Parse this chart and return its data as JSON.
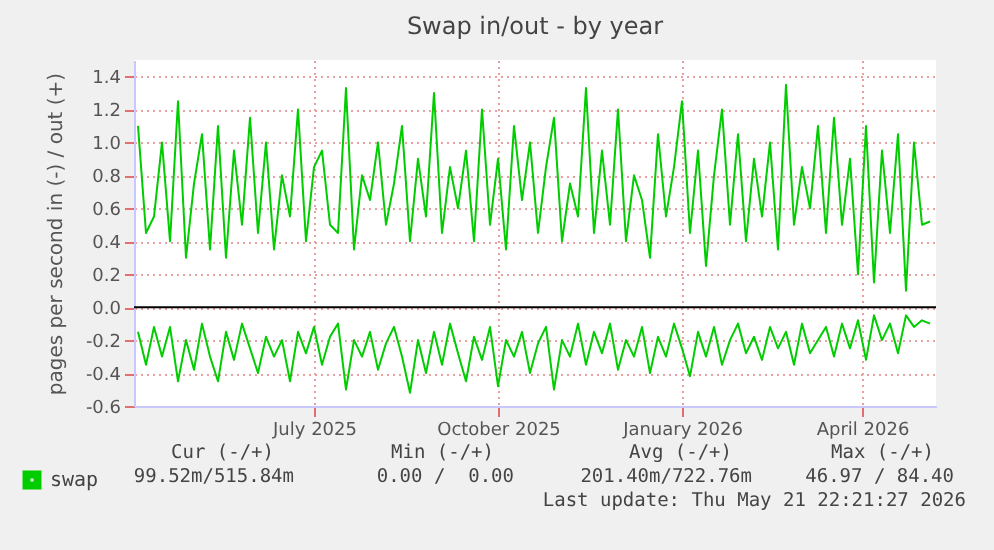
{
  "chart_data": {
    "type": "line",
    "title": "Swap in/out - by year",
    "ylabel": "pages per second in (-) / out (+)",
    "x": [
      "2025-04-19",
      "2025-04-23",
      "2025-04-27",
      "2025-05-01",
      "2025-05-05",
      "2025-05-09",
      "2025-05-13",
      "2025-05-17",
      "2025-05-21",
      "2025-05-25",
      "2025-05-29",
      "2025-06-02",
      "2025-06-06",
      "2025-06-10",
      "2025-06-14",
      "2025-06-18",
      "2025-06-22",
      "2025-06-26",
      "2025-06-30",
      "2025-07-04",
      "2025-07-08",
      "2025-07-12",
      "2025-07-16",
      "2025-07-20",
      "2025-07-24",
      "2025-07-28",
      "2025-08-01",
      "2025-08-05",
      "2025-08-09",
      "2025-08-13",
      "2025-08-17",
      "2025-08-21",
      "2025-08-25",
      "2025-08-29",
      "2025-09-02",
      "2025-09-06",
      "2025-09-10",
      "2025-09-14",
      "2025-09-18",
      "2025-09-22",
      "2025-09-26",
      "2025-09-30",
      "2025-10-04",
      "2025-10-08",
      "2025-10-12",
      "2025-10-16",
      "2025-10-20",
      "2025-10-24",
      "2025-10-28",
      "2025-11-01",
      "2025-11-05",
      "2025-11-09",
      "2025-11-13",
      "2025-11-17",
      "2025-11-21",
      "2025-11-25",
      "2025-11-29",
      "2025-12-03",
      "2025-12-07",
      "2025-12-11",
      "2025-12-15",
      "2025-12-19",
      "2025-12-23",
      "2025-12-27",
      "2025-12-31",
      "2026-01-04",
      "2026-01-08",
      "2026-01-12",
      "2026-01-16",
      "2026-01-20",
      "2026-01-24",
      "2026-01-28",
      "2026-02-01",
      "2026-02-05",
      "2026-02-09",
      "2026-02-13",
      "2026-02-17",
      "2026-02-21",
      "2026-02-25",
      "2026-03-01",
      "2026-03-05",
      "2026-03-09",
      "2026-03-13",
      "2026-03-17",
      "2026-03-21",
      "2026-03-25",
      "2026-03-29",
      "2026-04-02",
      "2026-04-06",
      "2026-04-10",
      "2026-04-14",
      "2026-04-18",
      "2026-04-22",
      "2026-04-26",
      "2026-04-30",
      "2026-05-04",
      "2026-05-08",
      "2026-05-12",
      "2026-05-16",
      "2026-05-20"
    ],
    "series": [
      {
        "name": "swap",
        "color": "#00cc00",
        "values": [
          1.1,
          0.45,
          0.55,
          1.0,
          0.4,
          1.25,
          0.3,
          0.75,
          1.05,
          0.35,
          1.1,
          0.3,
          0.95,
          0.5,
          1.15,
          0.45,
          1.0,
          0.35,
          0.8,
          0.55,
          1.2,
          0.4,
          0.85,
          0.95,
          0.5,
          0.45,
          1.33,
          0.35,
          0.8,
          0.65,
          1.0,
          0.5,
          0.75,
          1.1,
          0.4,
          0.9,
          0.55,
          1.3,
          0.45,
          0.85,
          0.6,
          0.95,
          0.4,
          1.2,
          0.5,
          0.9,
          0.35,
          1.1,
          0.65,
          1.0,
          0.45,
          0.85,
          1.15,
          0.4,
          0.75,
          0.55,
          1.33,
          0.45,
          0.95,
          0.5,
          1.2,
          0.4,
          0.8,
          0.65,
          0.3,
          1.05,
          0.55,
          0.85,
          1.25,
          0.45,
          0.95,
          0.25,
          0.8,
          1.2,
          0.5,
          1.05,
          0.4,
          0.9,
          0.55,
          1.0,
          0.35,
          1.35,
          0.5,
          0.85,
          0.6,
          1.1,
          0.45,
          1.15,
          0.5,
          0.9,
          0.2,
          1.1,
          0.15,
          0.95,
          0.45,
          1.05,
          0.1,
          1.0,
          0.5,
          0.52
        ]
      },
      {
        "color": "#00cc00",
        "values": [
          -0.15,
          -0.35,
          -0.12,
          -0.3,
          -0.12,
          -0.45,
          -0.2,
          -0.38,
          -0.1,
          -0.3,
          -0.45,
          -0.15,
          -0.32,
          -0.1,
          -0.25,
          -0.4,
          -0.18,
          -0.3,
          -0.2,
          -0.45,
          -0.15,
          -0.28,
          -0.12,
          -0.35,
          -0.18,
          -0.1,
          -0.5,
          -0.2,
          -0.3,
          -0.15,
          -0.38,
          -0.22,
          -0.12,
          -0.3,
          -0.52,
          -0.2,
          -0.4,
          -0.15,
          -0.35,
          -0.1,
          -0.28,
          -0.45,
          -0.18,
          -0.32,
          -0.12,
          -0.48,
          -0.2,
          -0.3,
          -0.15,
          -0.4,
          -0.22,
          -0.12,
          -0.5,
          -0.2,
          -0.3,
          -0.1,
          -0.35,
          -0.15,
          -0.28,
          -0.1,
          -0.38,
          -0.2,
          -0.3,
          -0.12,
          -0.4,
          -0.18,
          -0.3,
          -0.1,
          -0.25,
          -0.42,
          -0.15,
          -0.3,
          -0.12,
          -0.35,
          -0.2,
          -0.1,
          -0.28,
          -0.18,
          -0.32,
          -0.12,
          -0.25,
          -0.15,
          -0.35,
          -0.1,
          -0.28,
          -0.2,
          -0.12,
          -0.3,
          -0.1,
          -0.25,
          -0.08,
          -0.32,
          -0.05,
          -0.2,
          -0.1,
          -0.28,
          -0.05,
          -0.12,
          -0.08,
          -0.1
        ]
      }
    ],
    "xlim": [
      "2025-04-17",
      "2026-05-23"
    ],
    "xticks": [
      {
        "value": "2025-07-16",
        "label": "July 2025"
      },
      {
        "value": "2025-10-16",
        "label": "October 2025"
      },
      {
        "value": "2026-01-16",
        "label": "January 2026"
      },
      {
        "value": "2026-04-16",
        "label": "April 2026"
      }
    ],
    "ylim": [
      -0.6,
      1.5
    ],
    "yticks": [
      -0.6,
      -0.4,
      -0.2,
      {
        "value": 0,
        "label": "0.0"
      },
      0.2,
      0.4,
      0.6,
      0.8,
      {
        "value": 1,
        "label": "1.0"
      },
      1.2,
      1.4
    ],
    "ref_lines": [
      {
        "axis": "y",
        "value": 0,
        "color": "#000000"
      }
    ],
    "grid": true,
    "legend": "bottom",
    "annotations": [
      "Cur (-/+)",
      "Min (-/+)",
      "Avg (-/+)",
      "Max (-/+)",
      "99.52m/515.84m",
      "0.00 /  0.00",
      "201.40m/722.76m",
      "46.97 / 84.40",
      "Last update: Thu May 21 22:21:27 2026"
    ]
  }
}
